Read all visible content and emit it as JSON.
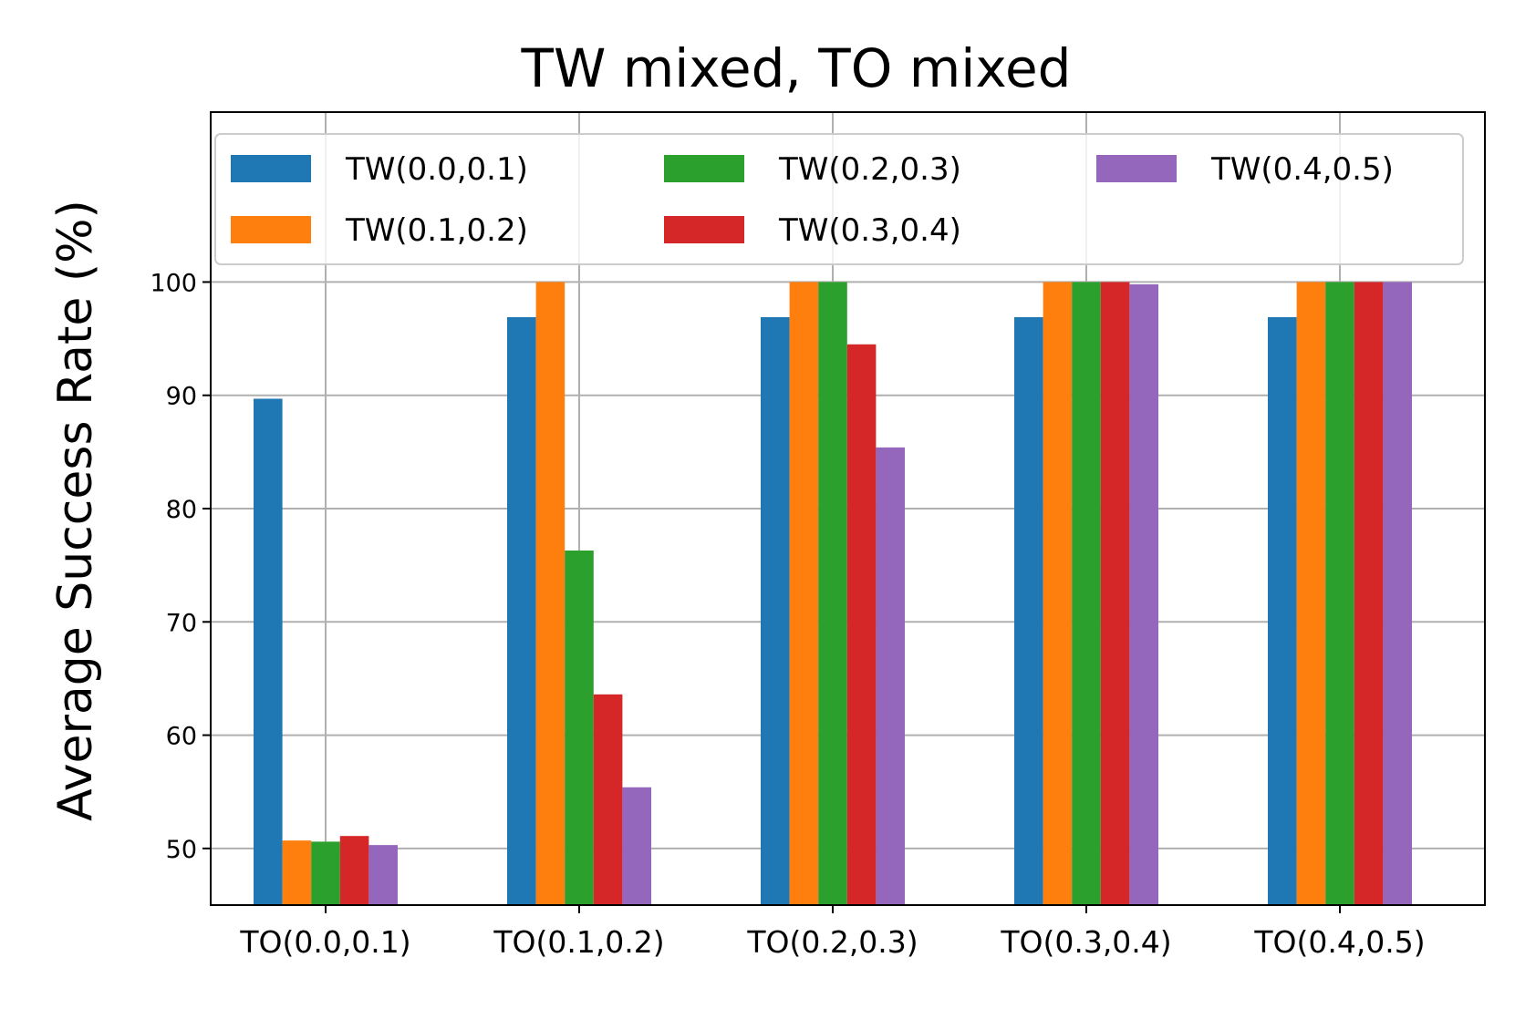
{
  "chart_data": {
    "type": "bar",
    "title": "TW mixed, TO mixed",
    "xlabel": "",
    "ylabel": "Average Success Rate (%)",
    "ylim": [
      45,
      115
    ],
    "yticks": [
      50,
      60,
      70,
      80,
      90,
      100
    ],
    "grid": true,
    "legend_position": "top",
    "legend_columns": 3,
    "categories": [
      "TO(0.0,0.1)",
      "TO(0.1,0.2)",
      "TO(0.2,0.3)",
      "TO(0.3,0.4)",
      "TO(0.4,0.5)"
    ],
    "series": [
      {
        "name": "TW(0.0,0.1)",
        "color": "#1f77b4",
        "values": [
          89.7,
          96.9,
          96.9,
          96.9,
          96.9
        ]
      },
      {
        "name": "TW(0.1,0.2)",
        "color": "#ff7f0e",
        "values": [
          50.7,
          100,
          100,
          100,
          100
        ]
      },
      {
        "name": "TW(0.2,0.3)",
        "color": "#2ca02c",
        "values": [
          50.6,
          76.3,
          100,
          100,
          100
        ]
      },
      {
        "name": "TW(0.3,0.4)",
        "color": "#d62728",
        "values": [
          51.1,
          63.6,
          94.5,
          100,
          100
        ]
      },
      {
        "name": "TW(0.4,0.5)",
        "color": "#9467bd",
        "values": [
          50.3,
          55.4,
          85.4,
          99.8,
          100
        ]
      }
    ]
  }
}
